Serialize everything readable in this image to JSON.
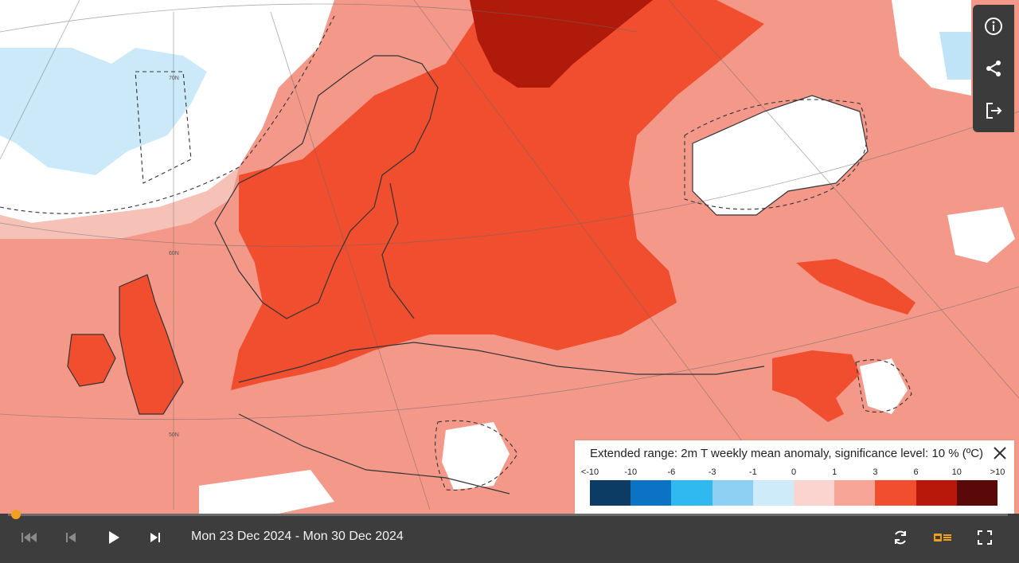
{
  "map": {
    "latitude_labels": [
      "70N",
      "60N",
      "50N"
    ],
    "colors": {
      "ocean_deep_negative": "#1c75bc",
      "light_blue": "#bfe3f7",
      "white": "#ffffff",
      "light_pink": "#f6c2b8",
      "pink": "#f4998a",
      "red": "#f04e2e",
      "dark_red": "#b01a0a",
      "coastline": "#333333"
    }
  },
  "tools": {
    "info_icon": "info-icon",
    "share_icon": "share-icon",
    "export_icon": "export-icon"
  },
  "legend": {
    "title": "Extended range: 2m T weekly mean anomaly, significance level: 10 % (ºC)",
    "ticks": [
      "<-10",
      "-10",
      "-6",
      "-3",
      "-1",
      "0",
      "1",
      "3",
      "6",
      "10",
      ">10"
    ],
    "bins": [
      "#0c3c64",
      "#0b73c4",
      "#30b8f0",
      "#8ed0f4",
      "#cdebf8",
      "#fbd3cf",
      "#f6a597",
      "#f04e2e",
      "#b8180a",
      "#5a0808"
    ]
  },
  "timeline": {
    "date_range": "Mon 23 Dec 2024 - Mon 30 Dec 2024",
    "progress": 0.0,
    "accent": "#f0a020"
  }
}
